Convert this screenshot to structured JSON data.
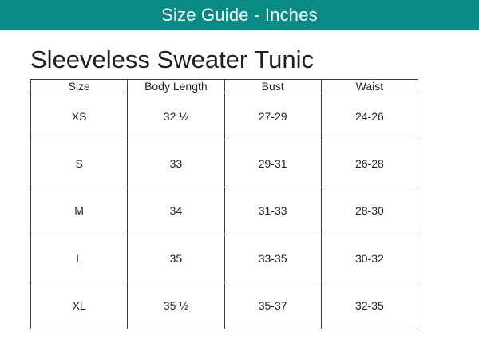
{
  "banner": {
    "text": "Size Guide - Inches"
  },
  "title": "Sleeveless Sweater Tunic",
  "table": {
    "headers": [
      "Size",
      "Body Length",
      "Bust",
      "Waist"
    ],
    "rows": [
      [
        "XS",
        "32 ½",
        "27-29",
        "24-26"
      ],
      [
        "S",
        "33",
        "29-31",
        "26-28"
      ],
      [
        "M",
        "34",
        "31-33",
        "28-30"
      ],
      [
        "L",
        "35",
        "33-35",
        "30-32"
      ],
      [
        "XL",
        "35 ½",
        "35-37",
        "32-35"
      ]
    ]
  },
  "colors": {
    "banner_background": "#0a8a84",
    "banner_text": "#ffffff",
    "table_border": "#3a3a3a"
  }
}
